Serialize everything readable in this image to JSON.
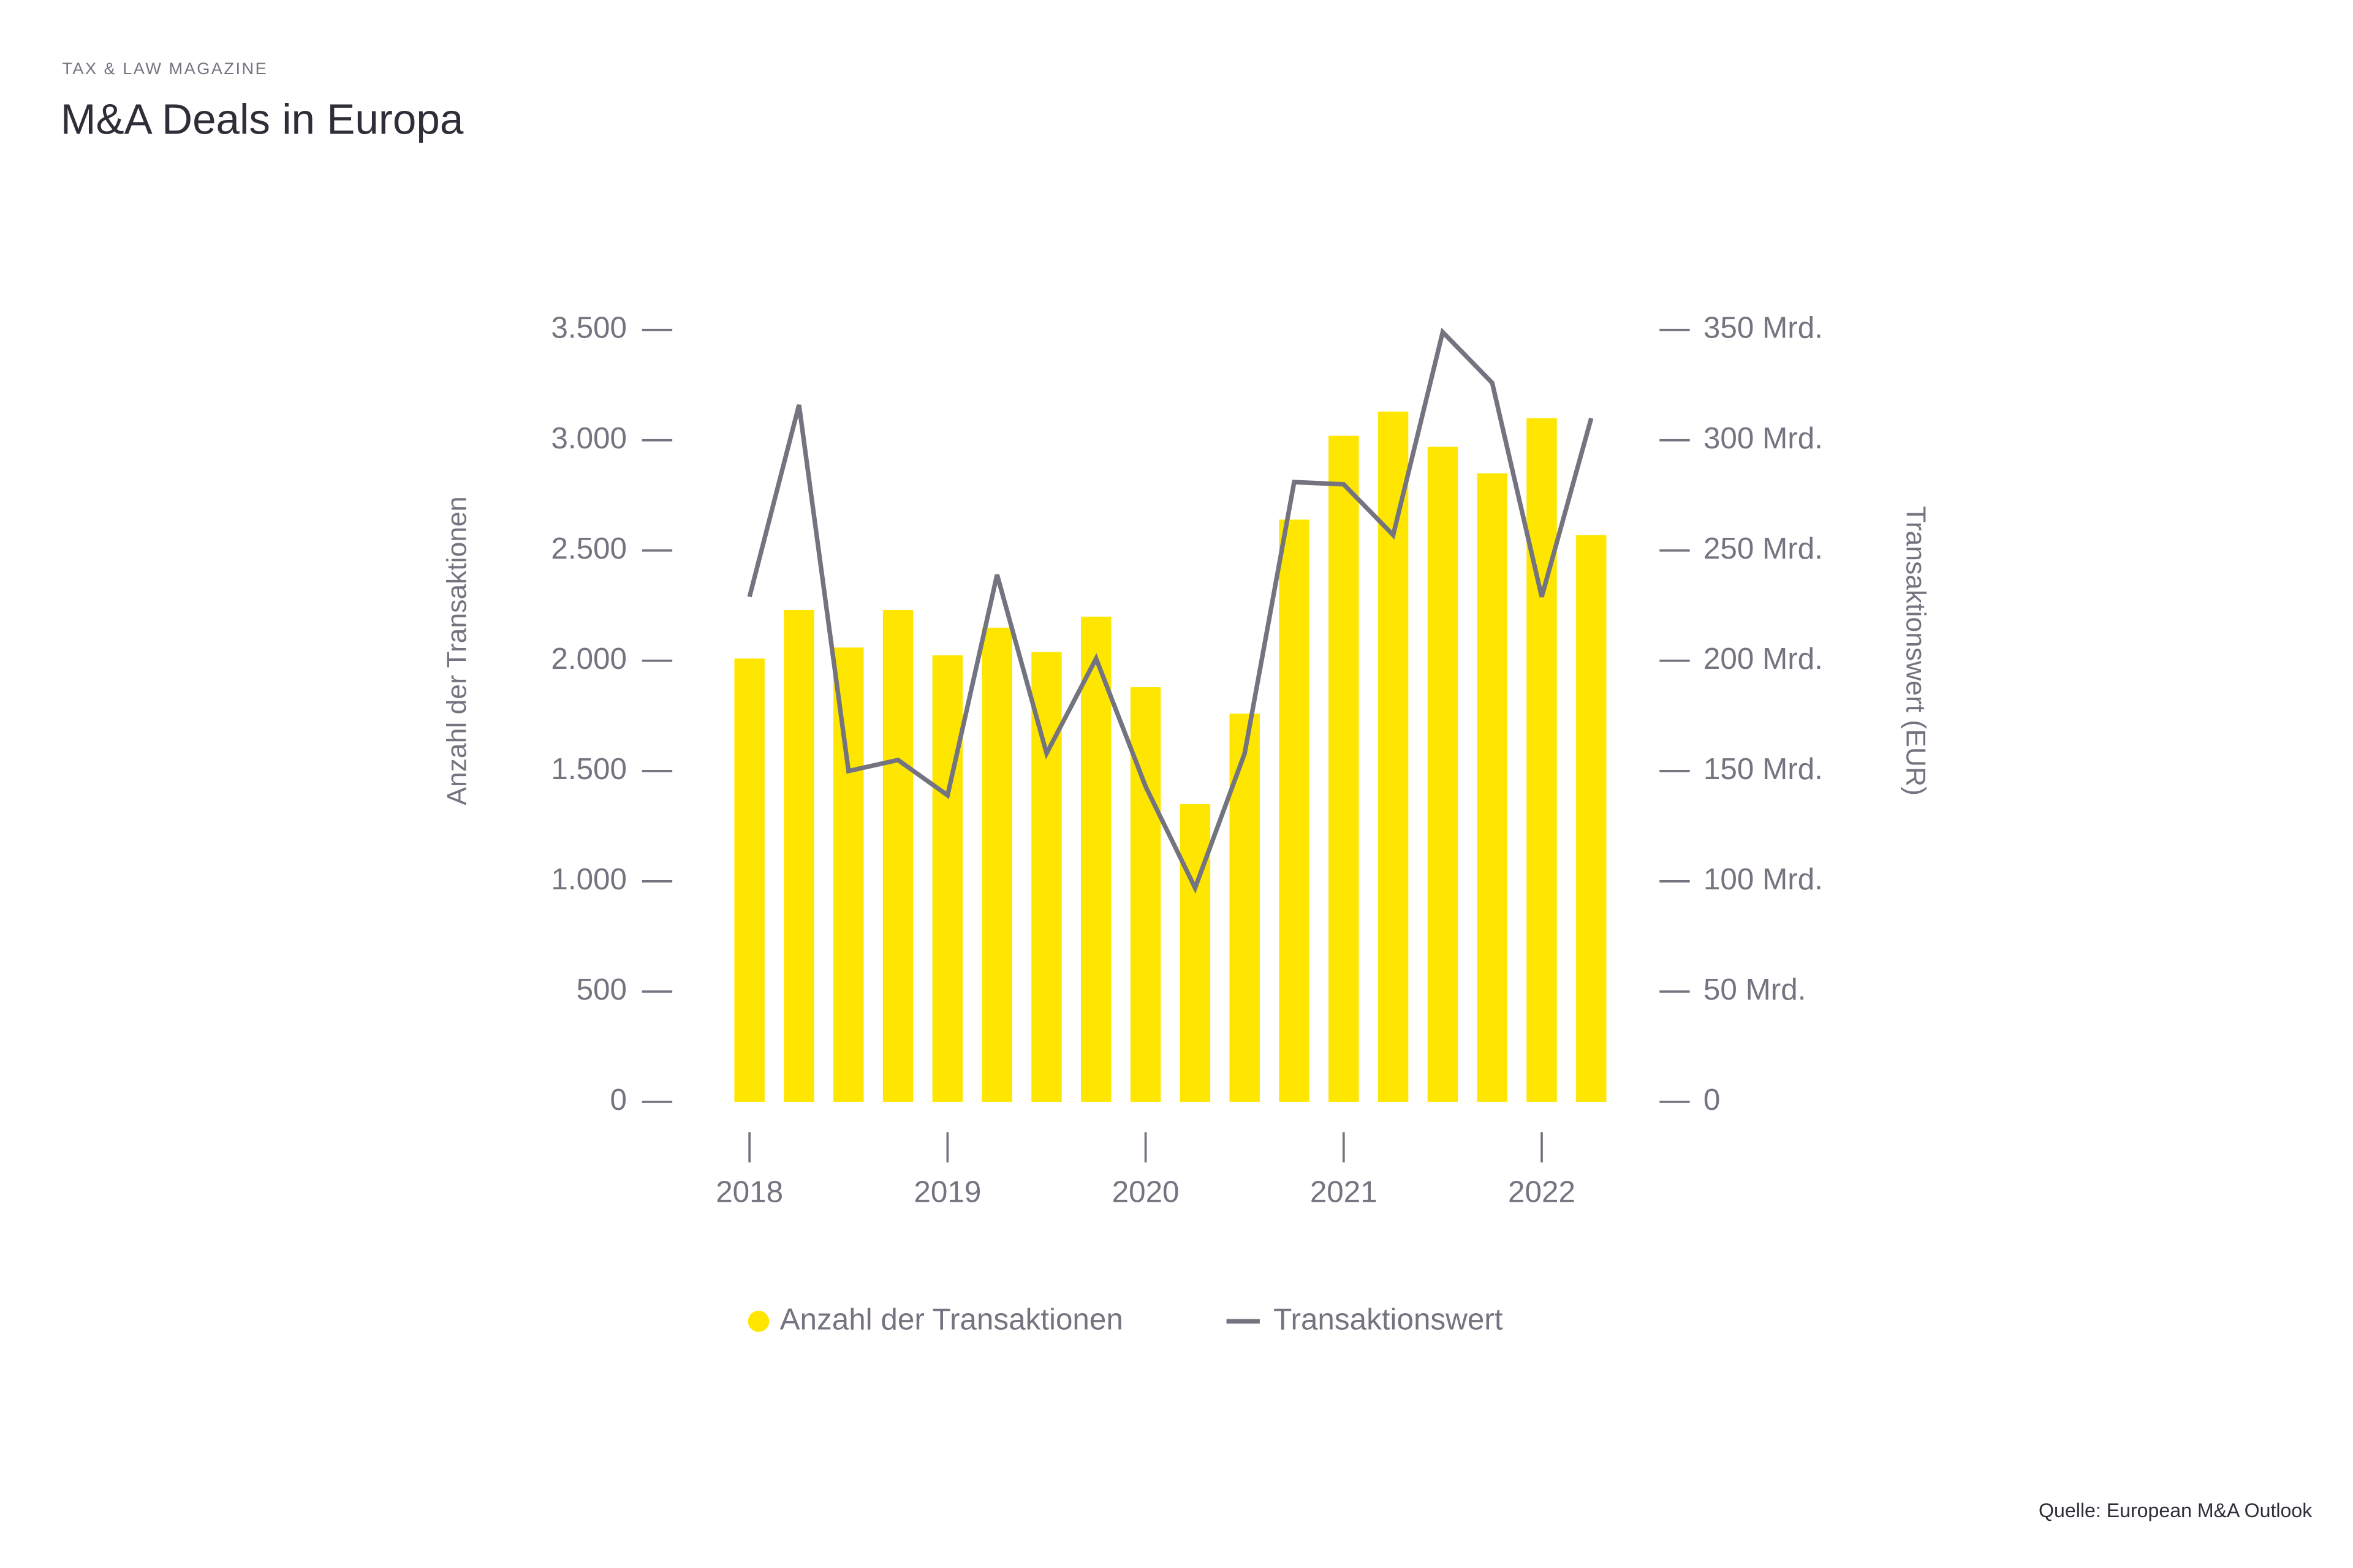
{
  "header": {
    "kicker": "TAX & LAW MAGAZINE",
    "source": "Quelle: European M&A Outlook"
  },
  "chart_data": {
    "type": "bar-line",
    "title": "M&A Deals in Europa",
    "y_label": "Anzahl der Transaktionen",
    "y2_label": "Transaktionswert (EUR)",
    "categories": [
      "2018",
      null,
      null,
      null,
      "2019",
      null,
      null,
      null,
      "2020",
      null,
      null,
      null,
      "2021",
      null,
      null,
      null,
      "2022",
      null
    ],
    "series": [
      {
        "name": "Anzahl der Transaktionen",
        "type": "bar",
        "color": "#ffe600",
        "values": [
          2010,
          2230,
          2060,
          2230,
          2025,
          2150,
          2040,
          2200,
          1880,
          1350,
          1760,
          2640,
          3020,
          3130,
          2970,
          2850,
          3100,
          2570
        ]
      },
      {
        "name": "Transaktionswert",
        "type": "line",
        "axis": "y2",
        "color": "#747480",
        "values": [
          229,
          316,
          150,
          155,
          139,
          239,
          158,
          201,
          143,
          97,
          158,
          281,
          280,
          257,
          349,
          326,
          229,
          310
        ]
      }
    ],
    "ylim": [
      0,
      3500
    ],
    "yticks": [
      0,
      500,
      {
        "value": 1000,
        "label": "1.000"
      },
      {
        "value": 1500,
        "label": "1.500"
      },
      {
        "value": 2000,
        "label": "2.000"
      },
      {
        "value": 2500,
        "label": "2.500"
      },
      {
        "value": 3000,
        "label": "3.000"
      },
      {
        "value": 3500,
        "label": "3.500"
      }
    ],
    "y2lim": [
      0,
      350
    ],
    "y2ticks": [
      0,
      {
        "value": 50,
        "label": "50 Mrd."
      },
      {
        "value": 100,
        "label": "100 Mrd."
      },
      {
        "value": 150,
        "label": "150 Mrd."
      },
      {
        "value": 200,
        "label": "200 Mrd."
      },
      {
        "value": 250,
        "label": "250 Mrd."
      },
      {
        "value": 300,
        "label": "300 Mrd."
      },
      {
        "value": 350,
        "label": "350 Mrd."
      }
    ],
    "legend": "bottom"
  }
}
